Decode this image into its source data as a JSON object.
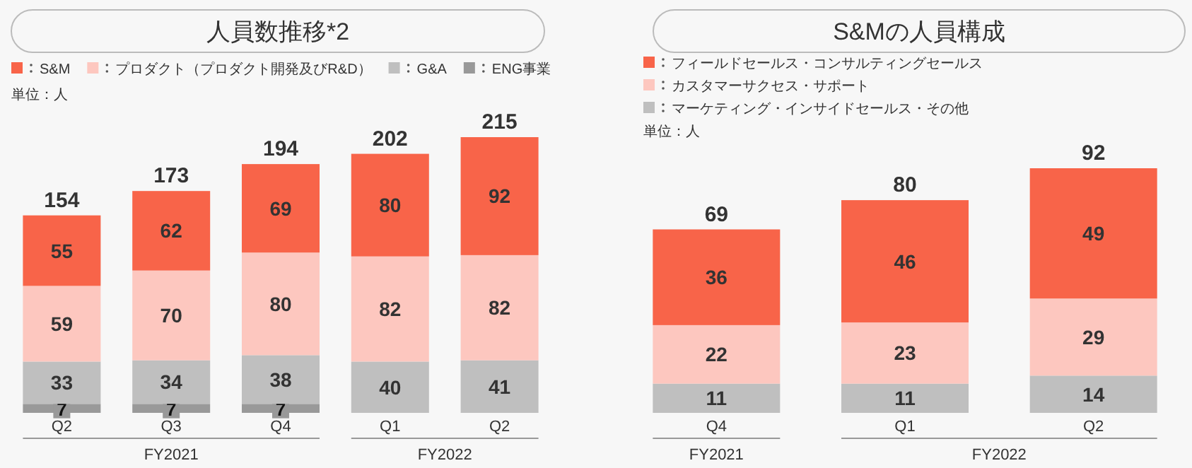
{
  "chart_data": [
    {
      "type": "bar",
      "title": "人員数推移*2",
      "stacked": true,
      "data_labels": true,
      "legend": "top left",
      "categories": [
        "Q2",
        "Q3",
        "Q4",
        "Q1",
        "Q2"
      ],
      "series": [
        {
          "name": "ENG事業",
          "color": "#999999",
          "values": [
            7,
            7,
            7,
            null,
            null
          ]
        },
        {
          "name": "G&A",
          "color": "#bfbfbf",
          "values": [
            33,
            34,
            38,
            40,
            41
          ]
        },
        {
          "name": "プロダクト（プロダクト開発及びR&D）",
          "color": "#fdc7bf",
          "values": [
            59,
            70,
            80,
            82,
            82
          ]
        },
        {
          "name": "S&M",
          "color": "#f86449",
          "values": [
            55,
            62,
            69,
            80,
            92
          ]
        }
      ],
      "totals": [
        "154",
        "173",
        "194",
        "202",
        "215"
      ],
      "annotations": [
        "単位：人",
        "FY2021",
        "FY2022"
      ]
    },
    {
      "type": "bar",
      "title": "S&Mの人員構成",
      "stacked": true,
      "data_labels": true,
      "legend": "top left",
      "categories": [
        "Q4",
        "Q1",
        "Q2"
      ],
      "series": [
        {
          "name": "マーケティング・インサイドセールス・その他",
          "color": "#bfbfbf",
          "values": [
            11,
            11,
            14
          ]
        },
        {
          "name": "カスタマーサクセス・サポート",
          "color": "#fdc7bf",
          "values": [
            22,
            23,
            29
          ]
        },
        {
          "name": "フィールドセールス・コンサルティングセールス",
          "color": "#f86449",
          "values": [
            36,
            46,
            49
          ]
        }
      ],
      "totals": [
        "69",
        "80",
        "92"
      ],
      "annotations": [
        "単位：人",
        "FY2021",
        "FY2022"
      ]
    }
  ]
}
